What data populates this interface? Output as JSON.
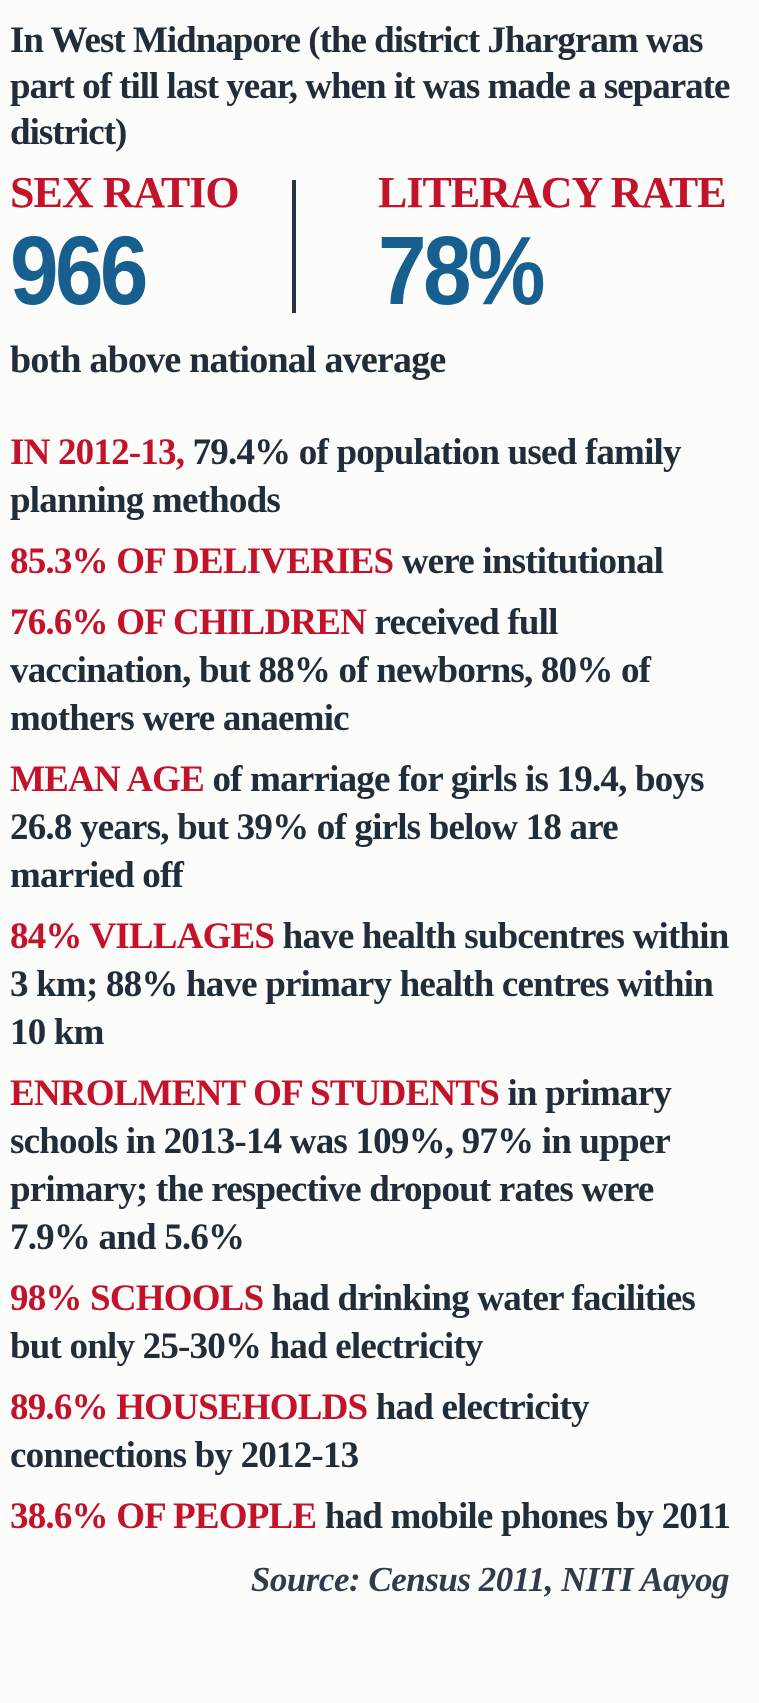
{
  "content": {
    "intro": "In West Midnapore (the district Jhargram was part of till last year, when it was made a separate district)",
    "note": "both above national average",
    "source": "Source: Census 2011, NITI Aayog"
  },
  "metrics": [
    {
      "label": "SEX RATIO",
      "value": "966"
    },
    {
      "label": "LITERACY RATE",
      "value": "78%"
    }
  ],
  "stats": [
    {
      "lead": "IN 2012-13,",
      "text": "79.4% of population used family planning methods"
    },
    {
      "lead": "85.3% OF DELIVERIES",
      "text": "were institutional"
    },
    {
      "lead": "76.6% OF CHILDREN",
      "text": "received full vaccination, but 88% of newborns, 80% of mothers were anaemic"
    },
    {
      "lead": "MEAN AGE",
      "text": "of marriage for girls is 19.4, boys 26.8 years, but 39% of girls below 18 are married off"
    },
    {
      "lead": "84% VILLAGES",
      "text": "have health subcentres within 3 km; 88% have primary health centres within 10 km"
    },
    {
      "lead": "ENROLMENT OF STUDENTS",
      "text": "in primary schools in 2013-14 was 109%, 97% in upper primary; the respective dropout rates were 7.9% and 5.6%"
    },
    {
      "lead": "98% SCHOOLS",
      "text": "had drinking water facilities but only 25-30% had electricity"
    },
    {
      "lead": "89.6% HOUSEHOLDS",
      "text": "had electricity connections by 2012-13"
    },
    {
      "lead": "38.6% OF PEOPLE",
      "text": "had mobile phones by 2011"
    }
  ],
  "colors": {
    "accent_red": "#c3122a",
    "accent_blue": "#175f8f",
    "text_dark": "#222d3a",
    "background": "#fcfcfb"
  }
}
